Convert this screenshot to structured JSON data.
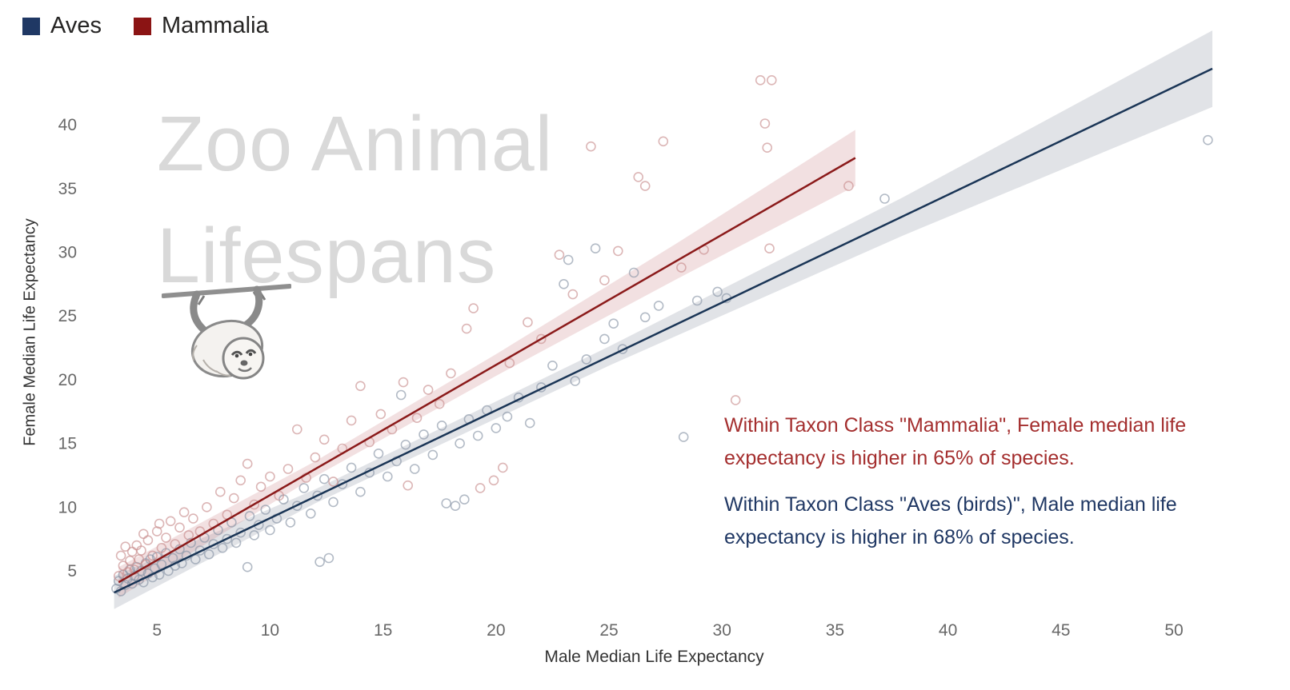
{
  "legend": {
    "items": [
      {
        "label": "Aves",
        "color": "#1f3864"
      },
      {
        "label": "Mammalia",
        "color": "#8b1414"
      }
    ]
  },
  "watermark": {
    "line1": "Zoo Animal",
    "line2": "Lifespans"
  },
  "axes": {
    "x_label": "Male Median Life Expectancy",
    "y_label": "Female Median Life Expectancy"
  },
  "annotations": {
    "mammalia": {
      "text": "Within Taxon Class \"Mammalia\", Female median life expectancy is higher in 65% of species.",
      "color": "#a42e2e"
    },
    "aves": {
      "text": "Within Taxon Class \"Aves (birds)\", Male median life expectancy is higher in 68% of species.",
      "color": "#203864"
    }
  },
  "chart_data": {
    "type": "scatter",
    "title": "Zoo Animal Lifespans",
    "xlabel": "Male Median Life Expectancy",
    "ylabel": "Female Median Life Expectancy",
    "xlim": [
      2.3,
      51.7
    ],
    "ylim": [
      1.8,
      45.9
    ],
    "x_ticks": [
      5,
      10,
      15,
      20,
      25,
      30,
      35,
      40,
      45,
      50
    ],
    "y_ticks": [
      5,
      10,
      15,
      20,
      25,
      30,
      35,
      40
    ],
    "grid": false,
    "legend_position": "top-left",
    "series": [
      {
        "name": "Aves",
        "point_color": "#8a96a8",
        "line_color": "#1a3556",
        "band_color": "#9aa3b0",
        "trend": {
          "x": [
            3.1,
            51.7
          ],
          "y": [
            3.3,
            44.4
          ]
        },
        "band": {
          "x": [
            3.1,
            12,
            25,
            38,
            51.7
          ],
          "upper": [
            4.6,
            11.4,
            22.6,
            34.3,
            47.4
          ],
          "lower": [
            2.0,
            10.3,
            21.1,
            31.3,
            41.4
          ]
        },
        "points": [
          [
            3.2,
            3.6
          ],
          [
            3.3,
            4.2
          ],
          [
            3.4,
            3.4
          ],
          [
            3.5,
            4.7
          ],
          [
            3.6,
            3.9
          ],
          [
            3.7,
            4.4
          ],
          [
            3.8,
            5.1
          ],
          [
            3.9,
            4.0
          ],
          [
            4.0,
            4.6
          ],
          [
            4.1,
            5.3
          ],
          [
            4.2,
            4.3
          ],
          [
            4.3,
            5.0
          ],
          [
            4.4,
            4.1
          ],
          [
            4.5,
            5.6
          ],
          [
            4.6,
            4.8
          ],
          [
            4.7,
            5.9
          ],
          [
            4.8,
            4.5
          ],
          [
            4.9,
            5.2
          ],
          [
            5.0,
            6.1
          ],
          [
            5.1,
            4.7
          ],
          [
            5.2,
            5.5
          ],
          [
            5.4,
            6.4
          ],
          [
            5.5,
            5.0
          ],
          [
            5.7,
            6.0
          ],
          [
            5.8,
            5.4
          ],
          [
            6.0,
            6.7
          ],
          [
            6.1,
            5.6
          ],
          [
            6.3,
            6.2
          ],
          [
            6.5,
            7.2
          ],
          [
            6.7,
            5.9
          ],
          [
            6.9,
            6.6
          ],
          [
            7.1,
            7.6
          ],
          [
            7.3,
            6.3
          ],
          [
            7.5,
            7.1
          ],
          [
            7.7,
            8.2
          ],
          [
            7.9,
            6.8
          ],
          [
            8.1,
            7.5
          ],
          [
            8.3,
            8.8
          ],
          [
            8.5,
            7.2
          ],
          [
            8.7,
            8.0
          ],
          [
            9.0,
            5.3
          ],
          [
            9.1,
            9.3
          ],
          [
            9.3,
            7.8
          ],
          [
            9.5,
            8.6
          ],
          [
            9.8,
            9.8
          ],
          [
            10.0,
            8.2
          ],
          [
            10.3,
            9.1
          ],
          [
            10.6,
            10.6
          ],
          [
            10.9,
            8.8
          ],
          [
            11.2,
            10.1
          ],
          [
            11.5,
            11.5
          ],
          [
            11.8,
            9.5
          ],
          [
            12.1,
            10.9
          ],
          [
            12.2,
            5.7
          ],
          [
            12.4,
            12.2
          ],
          [
            12.6,
            6.0
          ],
          [
            12.8,
            10.4
          ],
          [
            13.2,
            11.8
          ],
          [
            13.6,
            13.1
          ],
          [
            14.0,
            11.2
          ],
          [
            14.4,
            12.7
          ],
          [
            14.8,
            14.2
          ],
          [
            15.2,
            12.4
          ],
          [
            15.6,
            13.6
          ],
          [
            15.8,
            18.8
          ],
          [
            16.0,
            14.9
          ],
          [
            16.4,
            13.0
          ],
          [
            16.8,
            15.7
          ],
          [
            17.2,
            14.1
          ],
          [
            17.6,
            16.4
          ],
          [
            17.8,
            10.3
          ],
          [
            18.2,
            10.1
          ],
          [
            18.4,
            15.0
          ],
          [
            18.6,
            10.6
          ],
          [
            18.8,
            16.9
          ],
          [
            19.2,
            15.6
          ],
          [
            19.6,
            17.6
          ],
          [
            20.0,
            16.2
          ],
          [
            20.5,
            17.1
          ],
          [
            21.0,
            18.6
          ],
          [
            21.5,
            16.6
          ],
          [
            22.0,
            19.4
          ],
          [
            22.5,
            21.1
          ],
          [
            23.0,
            27.5
          ],
          [
            23.2,
            29.4
          ],
          [
            23.5,
            19.9
          ],
          [
            24.0,
            21.6
          ],
          [
            24.4,
            30.3
          ],
          [
            24.8,
            23.2
          ],
          [
            25.2,
            24.4
          ],
          [
            25.6,
            22.4
          ],
          [
            26.1,
            28.4
          ],
          [
            26.6,
            24.9
          ],
          [
            27.2,
            25.8
          ],
          [
            28.3,
            15.5
          ],
          [
            28.9,
            26.2
          ],
          [
            29.8,
            26.9
          ],
          [
            30.2,
            26.4
          ],
          [
            37.2,
            34.2
          ],
          [
            51.5,
            38.8
          ]
        ]
      },
      {
        "name": "Mammalia",
        "point_color": "#c98f8f",
        "line_color": "#8b1a1a",
        "band_color": "#d4989a",
        "trend": {
          "x": [
            3.3,
            35.9
          ],
          "y": [
            4.1,
            37.4
          ]
        },
        "band": {
          "x": [
            3.3,
            12,
            20,
            28,
            35.9
          ],
          "upper": [
            5.3,
            13.6,
            22.0,
            30.7,
            39.6
          ],
          "lower": [
            2.9,
            12.4,
            20.3,
            27.9,
            35.2
          ]
        },
        "points": [
          [
            3.3,
            4.6
          ],
          [
            3.4,
            6.2
          ],
          [
            3.5,
            5.4
          ],
          [
            3.6,
            6.9
          ],
          [
            3.7,
            4.9
          ],
          [
            3.8,
            5.8
          ],
          [
            3.9,
            6.5
          ],
          [
            4.0,
            5.1
          ],
          [
            4.1,
            7.0
          ],
          [
            4.2,
            5.9
          ],
          [
            4.3,
            6.6
          ],
          [
            4.4,
            7.9
          ],
          [
            4.5,
            5.5
          ],
          [
            4.6,
            7.4
          ],
          [
            4.8,
            6.2
          ],
          [
            5.0,
            8.1
          ],
          [
            5.1,
            8.7
          ],
          [
            5.2,
            6.8
          ],
          [
            5.4,
            7.6
          ],
          [
            5.6,
            8.9
          ],
          [
            5.8,
            7.1
          ],
          [
            6.0,
            8.4
          ],
          [
            6.2,
            9.6
          ],
          [
            6.4,
            7.8
          ],
          [
            6.6,
            9.1
          ],
          [
            6.9,
            8.1
          ],
          [
            7.2,
            10.0
          ],
          [
            7.5,
            8.7
          ],
          [
            7.8,
            11.2
          ],
          [
            8.1,
            9.4
          ],
          [
            8.4,
            10.7
          ],
          [
            8.7,
            12.1
          ],
          [
            9.0,
            13.4
          ],
          [
            9.3,
            10.2
          ],
          [
            9.6,
            11.6
          ],
          [
            10.0,
            12.4
          ],
          [
            10.4,
            10.9
          ],
          [
            10.8,
            13.0
          ],
          [
            11.2,
            16.1
          ],
          [
            11.6,
            12.3
          ],
          [
            12.0,
            13.9
          ],
          [
            12.4,
            15.3
          ],
          [
            12.8,
            12.0
          ],
          [
            13.2,
            14.6
          ],
          [
            13.6,
            16.8
          ],
          [
            14.0,
            19.5
          ],
          [
            14.4,
            15.1
          ],
          [
            14.9,
            17.3
          ],
          [
            15.4,
            16.1
          ],
          [
            15.9,
            19.8
          ],
          [
            16.1,
            11.7
          ],
          [
            16.5,
            17.0
          ],
          [
            17.0,
            19.2
          ],
          [
            17.5,
            18.1
          ],
          [
            18.0,
            20.5
          ],
          [
            18.7,
            24.0
          ],
          [
            19.0,
            25.6
          ],
          [
            19.3,
            11.5
          ],
          [
            19.9,
            12.1
          ],
          [
            20.3,
            13.1
          ],
          [
            20.6,
            21.3
          ],
          [
            21.4,
            24.5
          ],
          [
            22.0,
            23.2
          ],
          [
            22.8,
            29.8
          ],
          [
            23.4,
            26.7
          ],
          [
            24.2,
            38.3
          ],
          [
            24.8,
            27.8
          ],
          [
            25.4,
            30.1
          ],
          [
            26.3,
            35.9
          ],
          [
            26.6,
            35.2
          ],
          [
            27.4,
            38.7
          ],
          [
            28.2,
            28.8
          ],
          [
            29.2,
            30.2
          ],
          [
            30.6,
            18.4
          ],
          [
            31.7,
            43.5
          ],
          [
            32.2,
            43.5
          ],
          [
            31.9,
            40.1
          ],
          [
            32.0,
            38.2
          ],
          [
            32.1,
            30.3
          ],
          [
            35.6,
            35.2
          ]
        ]
      }
    ]
  }
}
